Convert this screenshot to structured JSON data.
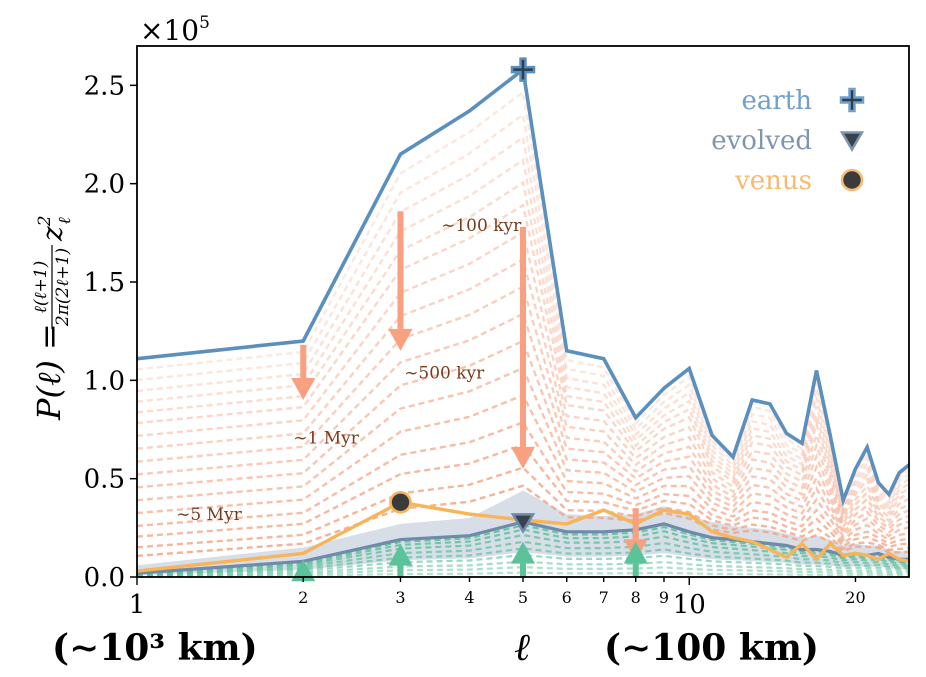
{
  "chart_data": {
    "type": "line",
    "x_scale": "log",
    "xlim": [
      1,
      25
    ],
    "ylim": [
      0,
      270000
    ],
    "y_multiplier_label": "×10",
    "y_multiplier_exponent": "5",
    "ylabel": "P(ℓ) = ℓ(ℓ+1)/(2π(2ℓ+1)) z²_ℓ",
    "ylabel_main": "P(ℓ) =",
    "ylabel_num": "ℓ(ℓ+1)",
    "ylabel_den": "2π(2ℓ+1)",
    "ylabel_tail": "z",
    "ylabel_sup": "2",
    "ylabel_sub": "ℓ",
    "xlabel": "ℓ",
    "x_extra_left": "(∼10³ km)",
    "x_extra_right": "(∼100 km)",
    "y_ticks": [
      {
        "value": 0,
        "label": "0.0"
      },
      {
        "value": 50000,
        "label": "0.5"
      },
      {
        "value": 100000,
        "label": "1.0"
      },
      {
        "value": 150000,
        "label": "1.5"
      },
      {
        "value": 200000,
        "label": "2.0"
      },
      {
        "value": 250000,
        "label": "2.5"
      }
    ],
    "x_ticks": [
      {
        "value": 1,
        "label": "1",
        "major": true
      },
      {
        "value": 2,
        "label": "2",
        "major": false
      },
      {
        "value": 3,
        "label": "3",
        "major": false
      },
      {
        "value": 4,
        "label": "4",
        "major": false
      },
      {
        "value": 5,
        "label": "5",
        "major": false
      },
      {
        "value": 6,
        "label": "6",
        "major": false
      },
      {
        "value": 7,
        "label": "7",
        "major": false
      },
      {
        "value": 8,
        "label": "8",
        "major": false
      },
      {
        "value": 9,
        "label": "9",
        "major": false
      },
      {
        "value": 10,
        "label": "10",
        "major": true
      },
      {
        "value": 20,
        "label": "20",
        "major": false
      }
    ],
    "series": [
      {
        "name": "earth",
        "color": "#5b8fbd",
        "x": [
          1,
          2,
          3,
          4,
          5,
          6,
          7,
          8,
          9,
          10,
          11,
          12,
          13,
          14,
          15,
          16,
          17,
          18,
          19,
          20,
          21,
          22,
          23,
          24,
          25
        ],
        "values": [
          111000,
          120000,
          215000,
          237000,
          258000,
          115000,
          111000,
          81000,
          96000,
          106000,
          72000,
          61000,
          90000,
          88000,
          73000,
          68000,
          105000,
          72000,
          39000,
          55000,
          66000,
          48000,
          42000,
          53000,
          57000
        ]
      },
      {
        "name": "evolved",
        "color": "#6f8aaa",
        "x": [
          1,
          2,
          3,
          4,
          5,
          6,
          7,
          8,
          9,
          10,
          11,
          12,
          13,
          14,
          15,
          16,
          17,
          18,
          19,
          20,
          21,
          22,
          23,
          24,
          25
        ],
        "values": [
          2000,
          8000,
          19000,
          21000,
          28000,
          23000,
          23000,
          24000,
          27000,
          23000,
          20000,
          19000,
          18000,
          17000,
          16000,
          14000,
          14000,
          13000,
          11000,
          12000,
          11000,
          12000,
          10000,
          9000,
          9000
        ]
      },
      {
        "name": "evolved_band_upper",
        "color": "#c9d3df",
        "x": [
          1,
          2,
          3,
          4,
          5,
          6,
          7,
          8,
          9,
          10,
          11,
          12,
          13,
          14,
          15,
          16,
          17,
          18,
          19,
          20,
          21,
          22,
          23,
          24,
          25
        ],
        "values": [
          6000,
          15000,
          27000,
          30000,
          44000,
          32000,
          31000,
          32000,
          36000,
          31000,
          28000,
          26000,
          25000,
          24000,
          22000,
          20000,
          21000,
          19000,
          16000,
          17000,
          16000,
          16000,
          14000,
          13000,
          13000
        ]
      },
      {
        "name": "venus",
        "color": "#f7b458",
        "x": [
          1,
          2,
          3,
          4,
          5,
          6,
          7,
          8,
          9,
          10,
          11,
          12,
          13,
          14,
          15,
          16,
          17,
          18,
          19,
          20,
          21,
          22,
          23,
          24,
          25
        ],
        "values": [
          3000,
          12000,
          38000,
          32000,
          29000,
          27000,
          34000,
          27000,
          34000,
          32000,
          23000,
          20000,
          18000,
          14000,
          10000,
          17000,
          9000,
          17000,
          11000,
          12000,
          11000,
          9000,
          12000,
          9000,
          8000
        ]
      }
    ],
    "decay_factors": [
      0.95,
      0.9,
      0.85,
      0.8,
      0.75,
      0.7,
      0.64,
      0.58,
      0.52,
      0.46,
      0.4,
      0.34,
      0.28,
      0.22,
      0.17,
      0.12,
      0.08
    ],
    "growth_factors": [
      0.08,
      0.18,
      0.28,
      0.4,
      0.52,
      0.64,
      0.76,
      0.86,
      0.94
    ],
    "markers": [
      {
        "series": "earth",
        "symbol": "plus",
        "x": 5,
        "y": 258000
      },
      {
        "series": "evolved",
        "symbol": "triangle",
        "x": 5,
        "y": 28000
      },
      {
        "series": "venus",
        "symbol": "circle",
        "x": 3,
        "y": 38000
      }
    ],
    "arrows": [
      {
        "x": 2,
        "y_from": 118000,
        "y_to": 90000,
        "dir": "down",
        "color": "#f8a07f"
      },
      {
        "x": 3,
        "y_from": 186000,
        "y_to": 115000,
        "dir": "down",
        "color": "#f8a07f"
      },
      {
        "x": 5,
        "y_from": 178000,
        "y_to": 55000,
        "dir": "down",
        "color": "#f8a07f"
      },
      {
        "x": 8,
        "y_from": 35000,
        "y_to": 8000,
        "dir": "down",
        "color": "#f8a07f"
      },
      {
        "x": 2,
        "y_from": 0,
        "y_to": 9000,
        "dir": "up",
        "color": "#5bc29a"
      },
      {
        "x": 3,
        "y_from": 0,
        "y_to": 17000,
        "dir": "up",
        "color": "#5bc29a"
      },
      {
        "x": 5,
        "y_from": 0,
        "y_to": 18000,
        "dir": "up",
        "color": "#5bc29a"
      },
      {
        "x": 8,
        "y_from": 0,
        "y_to": 18000,
        "dir": "up",
        "color": "#5bc29a"
      }
    ],
    "annotations": [
      {
        "text": "∼100 kyr",
        "x": 4.2,
        "y": 176000
      },
      {
        "text": "∼500 kyr",
        "x": 3.6,
        "y": 101000
      },
      {
        "text": "∼1 Myr",
        "x": 2.2,
        "y": 68000
      },
      {
        "text": "∼5 Myr",
        "x": 1.35,
        "y": 29000
      }
    ],
    "legend": {
      "position": "top-right",
      "entries": [
        {
          "label": "earth",
          "color": "#6f9fcb",
          "symbol": "plus"
        },
        {
          "label": "evolved",
          "color": "#7f95b0",
          "symbol": "triangle"
        },
        {
          "label": "venus",
          "color": "#f8b972",
          "symbol": "circle"
        }
      ]
    }
  }
}
